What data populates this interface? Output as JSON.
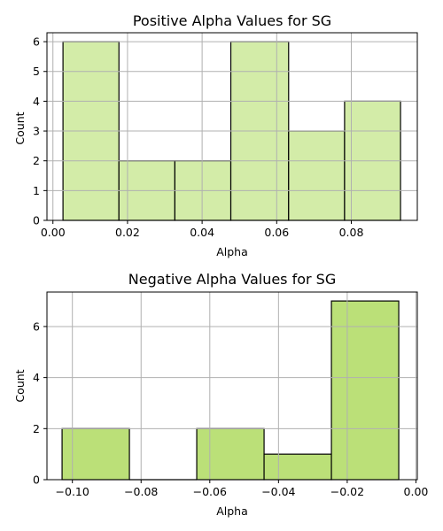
{
  "chart_data": [
    {
      "type": "bar",
      "title": "Positive Alpha Values for SG",
      "xlabel": "Alpha",
      "ylabel": "Count",
      "xlim": [
        -0.0016,
        0.0977
      ],
      "ylim": [
        0,
        6.3
      ],
      "xticks": [
        0.0,
        0.02,
        0.04,
        0.06,
        0.08
      ],
      "xtick_labels": [
        "0.00",
        "0.02",
        "0.04",
        "0.06",
        "0.08"
      ],
      "yticks": [
        0,
        1,
        2,
        3,
        4,
        5,
        6
      ],
      "ytick_labels": [
        "0",
        "1",
        "2",
        "3",
        "4",
        "5",
        "6"
      ],
      "bin_edges": [
        0.0027,
        0.0177,
        0.0327,
        0.0477,
        0.0632,
        0.0782,
        0.0932
      ],
      "values": [
        6,
        2,
        2,
        6,
        3,
        4
      ],
      "bar_color": "#d3eca8",
      "edge_color": "#000000",
      "grid": true
    },
    {
      "type": "bar",
      "title": "Negative Alpha Values for SG",
      "xlabel": "Alpha",
      "ylabel": "Count",
      "xlim": [
        -0.1074,
        0.0004
      ],
      "ylim": [
        0,
        7.35
      ],
      "xticks": [
        -0.1,
        -0.08,
        -0.06,
        -0.04,
        -0.02,
        0.0
      ],
      "xtick_labels": [
        "−0.10",
        "−0.08",
        "−0.06",
        "−0.04",
        "−0.02",
        "0.00"
      ],
      "yticks": [
        0,
        2,
        4,
        6
      ],
      "ytick_labels": [
        "0",
        "2",
        "4",
        "6"
      ],
      "bin_edges": [
        -0.103,
        -0.0834,
        -0.0638,
        -0.0442,
        -0.0246,
        -0.005
      ],
      "values": [
        2,
        0,
        2,
        1,
        7
      ],
      "bar_color": "#bbe078",
      "edge_color": "#000000",
      "grid": true
    }
  ]
}
